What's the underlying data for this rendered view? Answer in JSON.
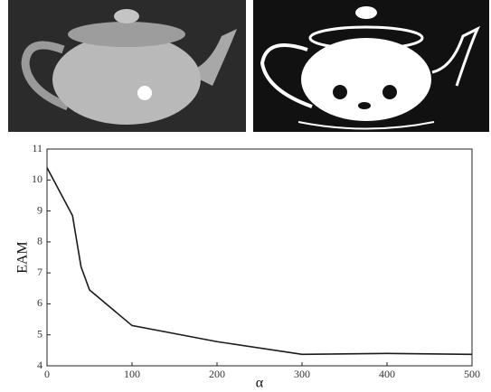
{
  "chart_data": {
    "type": "line",
    "x": [
      0,
      30,
      40,
      50,
      100,
      200,
      300,
      400,
      500
    ],
    "series": [
      {
        "name": "EAM",
        "color": "#1a1a1a",
        "values": [
          10.4,
          8.85,
          7.2,
          6.45,
          5.3,
          4.78,
          4.37,
          4.4,
          4.37
        ]
      }
    ],
    "xlabel": "α",
    "ylabel": "EAM",
    "xlim": [
      0,
      500
    ],
    "xticks": [
      0,
      100,
      200,
      300,
      400,
      500
    ],
    "ylim": [
      4,
      11
    ],
    "yticks": [
      4,
      5,
      6,
      7,
      8,
      9,
      10,
      11
    ],
    "grid": false
  }
}
